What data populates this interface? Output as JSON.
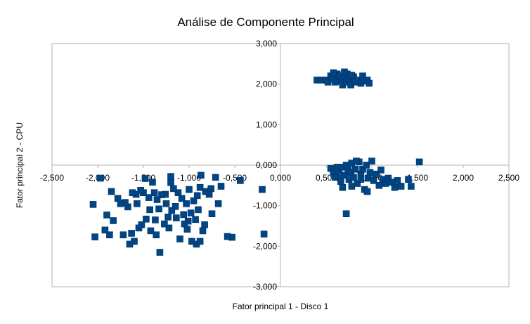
{
  "chart_data": {
    "type": "scatter",
    "title": "Análise de Componente Principal",
    "xlabel": "Fator principal 1 - Disco 1",
    "ylabel": "Fator principal 2 - CPU",
    "xlim": [
      -2.5,
      2.5
    ],
    "ylim": [
      -3,
      3
    ],
    "x_ticks": [
      -2.5,
      -2,
      -1.5,
      -1,
      -0.5,
      0,
      0.5,
      1,
      1.5,
      2,
      2.5
    ],
    "x_tick_labels": [
      "-2,500",
      "-2,000",
      "-1,500",
      "-1,000",
      "-0,500",
      "0,000",
      "0,500",
      "1,000",
      "1,500",
      "2,000",
      "2,500"
    ],
    "y_ticks": [
      3,
      2,
      1,
      0,
      -1,
      -2,
      -3
    ],
    "y_tick_labels": [
      "3,000",
      "2,000",
      "1,000",
      "0,000",
      "-1,000",
      "-2,000",
      "-3,000"
    ],
    "grid": false,
    "legend": "none",
    "marker": "square",
    "marker_color": "#004586",
    "points": [
      [
        -0.2,
        -0.6
      ],
      [
        -0.18,
        -1.7
      ],
      [
        -0.44,
        -0.38
      ],
      [
        -0.53,
        -1.78
      ],
      [
        -0.58,
        -1.76
      ],
      [
        -0.65,
        -0.52
      ],
      [
        -0.68,
        -0.95
      ],
      [
        -0.71,
        -0.3
      ],
      [
        -0.75,
        -1.2
      ],
      [
        -0.78,
        -0.72
      ],
      [
        -0.82,
        -0.65
      ],
      [
        -0.83,
        -1.47
      ],
      [
        -0.85,
        -1.62
      ],
      [
        -0.87,
        -0.25
      ],
      [
        -0.88,
        -0.55
      ],
      [
        -0.9,
        -1.1
      ],
      [
        -0.91,
        -0.75
      ],
      [
        -0.92,
        -1.95
      ],
      [
        -0.93,
        -1.34
      ],
      [
        -0.95,
        -0.88
      ],
      [
        -0.97,
        -1.88
      ],
      [
        -0.98,
        -1.18
      ],
      [
        -1.0,
        -0.6
      ],
      [
        -1.01,
        -1.38
      ],
      [
        -1.02,
        -1.58
      ],
      [
        -1.03,
        -0.95
      ],
      [
        -1.05,
        -1.45
      ],
      [
        -1.06,
        -1.22
      ],
      [
        -1.08,
        -0.82
      ],
      [
        -1.1,
        -1.82
      ],
      [
        -1.12,
        -0.68
      ],
      [
        -1.14,
        -1.3
      ],
      [
        -1.15,
        -1.02
      ],
      [
        -1.17,
        -0.58
      ],
      [
        -1.19,
        -1.12
      ],
      [
        -1.2,
        -0.43
      ],
      [
        -1.22,
        -1.55
      ],
      [
        -1.23,
        -1.28
      ],
      [
        -1.25,
        -0.95
      ],
      [
        -1.26,
        -0.72
      ],
      [
        -1.27,
        -1.45
      ],
      [
        -1.3,
        -0.73
      ],
      [
        -1.32,
        -2.15
      ],
      [
        -1.33,
        -1.08
      ],
      [
        -1.35,
        -0.85
      ],
      [
        -1.37,
        -1.35
      ],
      [
        -1.38,
        -0.68
      ],
      [
        -1.4,
        -0.42
      ],
      [
        -1.42,
        -1.62
      ],
      [
        -1.43,
        -1.1
      ],
      [
        -1.44,
        -0.8
      ],
      [
        -1.47,
        -1.33
      ],
      [
        -1.5,
        -0.68
      ],
      [
        -1.52,
        -1.47
      ],
      [
        -1.53,
        -0.62
      ],
      [
        -1.55,
        -1.55
      ],
      [
        -1.57,
        -0.95
      ],
      [
        -1.58,
        -0.72
      ],
      [
        -1.6,
        -1.88
      ],
      [
        -1.62,
        -0.68
      ],
      [
        -1.65,
        -1.95
      ],
      [
        -1.67,
        -1.03
      ],
      [
        -1.7,
        -0.92
      ],
      [
        -1.72,
        -1.72
      ],
      [
        -1.75,
        -0.95
      ],
      [
        -1.78,
        -0.82
      ],
      [
        -1.83,
        -1.37
      ],
      [
        -1.85,
        -0.65
      ],
      [
        -1.87,
        -1.72
      ],
      [
        -1.9,
        -1.23
      ],
      [
        -1.92,
        -1.6
      ],
      [
        -1.97,
        -0.32
      ],
      [
        -2.03,
        -1.77
      ],
      [
        -2.05,
        -0.97
      ],
      [
        -1.63,
        -1.68
      ],
      [
        -1.2,
        -0.28
      ],
      [
        -1.48,
        -0.33
      ],
      [
        -0.76,
        -0.58
      ],
      [
        -1.36,
        -1.72
      ],
      [
        -0.88,
        -1.88
      ],
      [
        0.4,
        2.1
      ],
      [
        0.45,
        2.1
      ],
      [
        0.5,
        2.1
      ],
      [
        0.52,
        2.05
      ],
      [
        0.55,
        2.2
      ],
      [
        0.57,
        2.12
      ],
      [
        0.6,
        2.05
      ],
      [
        0.62,
        2.25
      ],
      [
        0.63,
        2.15
      ],
      [
        0.65,
        2.2
      ],
      [
        0.67,
        2.08
      ],
      [
        0.68,
        1.98
      ],
      [
        0.7,
        2.18
      ],
      [
        0.72,
        2.05
      ],
      [
        0.73,
        2.25
      ],
      [
        0.75,
        2.12
      ],
      [
        0.77,
        1.98
      ],
      [
        0.8,
        2.18
      ],
      [
        0.82,
        2.05
      ],
      [
        0.85,
        2.1
      ],
      [
        0.88,
        2.02
      ],
      [
        0.9,
        2.2
      ],
      [
        0.92,
        2.08
      ],
      [
        0.95,
        2.1
      ],
      [
        0.97,
        2.02
      ],
      [
        0.58,
        2.28
      ],
      [
        0.7,
        2.3
      ],
      [
        0.78,
        2.22
      ],
      [
        0.55,
        -0.08
      ],
      [
        0.58,
        -0.2
      ],
      [
        0.6,
        -0.3
      ],
      [
        0.62,
        -0.05
      ],
      [
        0.64,
        -0.15
      ],
      [
        0.66,
        -0.32
      ],
      [
        0.68,
        -0.05
      ],
      [
        0.7,
        -0.25
      ],
      [
        0.72,
        0.0
      ],
      [
        0.74,
        -0.12
      ],
      [
        0.75,
        -0.35
      ],
      [
        0.77,
        -0.18
      ],
      [
        0.78,
        0.05
      ],
      [
        0.8,
        -0.3
      ],
      [
        0.82,
        -0.1
      ],
      [
        0.84,
        -0.45
      ],
      [
        0.86,
        0.08
      ],
      [
        0.88,
        -0.22
      ],
      [
        0.9,
        -0.1
      ],
      [
        0.92,
        -0.6
      ],
      [
        0.94,
        0.0
      ],
      [
        0.96,
        -0.32
      ],
      [
        0.98,
        -0.18
      ],
      [
        1.0,
        0.1
      ],
      [
        1.02,
        -0.38
      ],
      [
        1.05,
        -0.22
      ],
      [
        1.08,
        -0.5
      ],
      [
        1.1,
        -0.12
      ],
      [
        1.12,
        -0.35
      ],
      [
        1.15,
        -0.45
      ],
      [
        1.18,
        -0.32
      ],
      [
        1.22,
        -0.42
      ],
      [
        1.25,
        -0.55
      ],
      [
        1.28,
        -0.38
      ],
      [
        1.32,
        -0.52
      ],
      [
        1.4,
        -0.35
      ],
      [
        1.43,
        -0.52
      ],
      [
        1.52,
        0.08
      ],
      [
        0.68,
        -0.55
      ],
      [
        0.78,
        -0.52
      ],
      [
        0.72,
        -1.2
      ],
      [
        0.95,
        -0.65
      ],
      [
        0.88,
        -0.35
      ],
      [
        0.83,
        0.1
      ],
      [
        0.66,
        -0.4
      ]
    ]
  }
}
